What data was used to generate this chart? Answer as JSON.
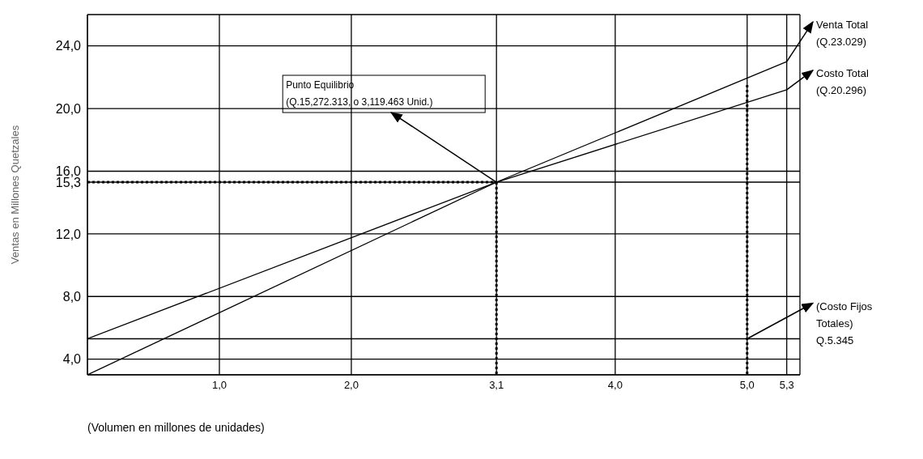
{
  "chart_data": {
    "type": "line",
    "xlabel": "(Volumen en millones de unidades)",
    "ylabel": "Ventas en Millones Quetzales",
    "xlim": [
      0,
      5.4
    ],
    "ylim": [
      3,
      26
    ],
    "xticks": [
      {
        "value": 1,
        "label": "1,0"
      },
      {
        "value": 2,
        "label": "2,0"
      },
      {
        "value": 3.1,
        "label": "3,1"
      },
      {
        "value": 4,
        "label": "4,0"
      },
      {
        "value": 5,
        "label": "5,0"
      },
      {
        "value": 5.3,
        "label": "5,3"
      }
    ],
    "yticks": [
      {
        "value": 4,
        "label": "4,0"
      },
      {
        "value": 8,
        "label": "8,0"
      },
      {
        "value": 12,
        "label": "12,0"
      },
      {
        "value": 15.3,
        "label": "15,3"
      },
      {
        "value": 16,
        "label": "16,0"
      },
      {
        "value": 20,
        "label": "20,0"
      },
      {
        "value": 24,
        "label": "24,0"
      }
    ],
    "grid": true,
    "marker": "none",
    "series": [
      {
        "color": "#000000",
        "x": [
          0,
          3.1,
          5.3
        ],
        "values": [
          3,
          15.3,
          23.0
        ],
        "line_style": "solid"
      },
      {
        "color": "#000000",
        "x": [
          0,
          3.1,
          5.3
        ],
        "values": [
          5.3,
          15.3,
          21.2
        ],
        "line_style": "solid"
      },
      {
        "color": "#000000",
        "x": [
          0,
          5.4
        ],
        "values": [
          5.3,
          5.3
        ],
        "line_style": "solid"
      },
      {
        "color": "#000000",
        "x": [
          0,
          3.1
        ],
        "values": [
          15.3,
          15.3
        ],
        "line_style": "dotted"
      },
      {
        "color": "#000000",
        "x": [
          3.1,
          3.1
        ],
        "values": [
          15.3,
          3
        ],
        "line_style": "dotted"
      },
      {
        "color": "#000000",
        "x": [
          5.0,
          5.0
        ],
        "values": [
          21.5,
          3
        ],
        "line_style": "dotted"
      }
    ],
    "annotations": [
      {
        "text": "Punto Equilibrio\n(Q.15,272.313, o 3,119.463 Unid.)",
        "x": 3.1,
        "y": 15.3
      },
      {
        "text": "Venta Total\n(Q.23.029)",
        "x": 5.3,
        "y": 23.0
      },
      {
        "text": "Costo Total\n(Q.20.296)",
        "x": 5.3,
        "y": 21.2
      },
      {
        "text": "(Costo Fijos\nTotales)\nQ.5.345",
        "x": 5.0,
        "y": 5.3
      }
    ]
  }
}
